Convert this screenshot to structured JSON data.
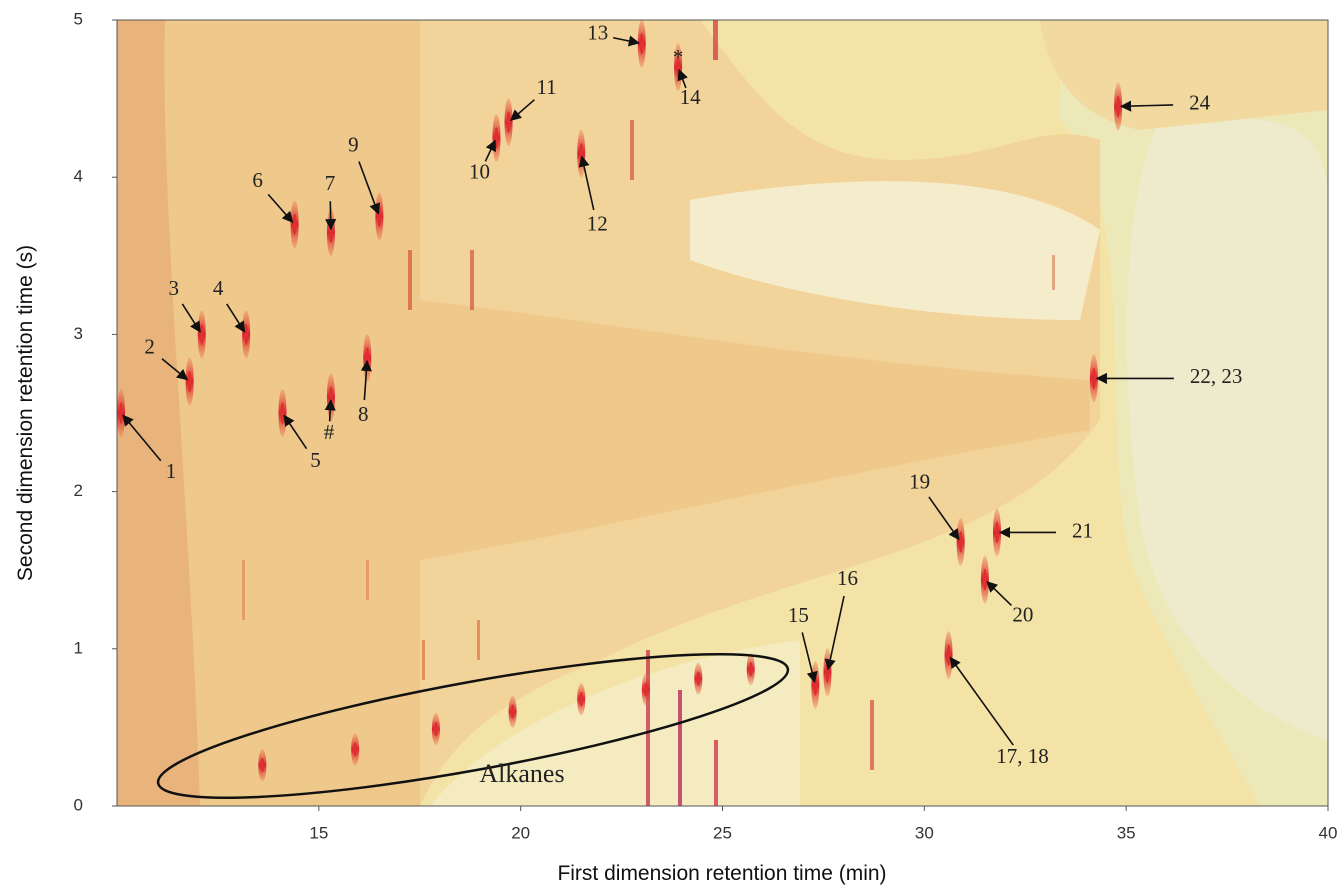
{
  "chart_data": {
    "type": "contour",
    "x_label": "First dimension retention time (min)",
    "y_label": "Second dimension retention time (s)",
    "xlim": [
      10,
      40
    ],
    "xticks": [
      15,
      20,
      25,
      30,
      35,
      40
    ],
    "ylim": [
      0,
      5
    ],
    "yticks": [
      0,
      1,
      2,
      3,
      4,
      5
    ],
    "peak_color": "#e0302a",
    "peaks": [
      {
        "label": "1",
        "x": 10.1,
        "y": 2.5
      },
      {
        "label": "2",
        "x": 11.8,
        "y": 2.7
      },
      {
        "label": "3",
        "x": 12.1,
        "y": 3.0
      },
      {
        "label": "4",
        "x": 13.2,
        "y": 3.0
      },
      {
        "label": "5",
        "x": 14.1,
        "y": 2.5
      },
      {
        "label": "#",
        "x": 15.3,
        "y": 2.6
      },
      {
        "label": "6",
        "x": 14.4,
        "y": 3.7
      },
      {
        "label": "7",
        "x": 15.3,
        "y": 3.65
      },
      {
        "label": "8",
        "x": 16.2,
        "y": 2.85
      },
      {
        "label": "9",
        "x": 16.5,
        "y": 3.75
      },
      {
        "label": "10",
        "x": 19.4,
        "y": 4.25
      },
      {
        "label": "11",
        "x": 19.7,
        "y": 4.35
      },
      {
        "label": "12",
        "x": 21.5,
        "y": 4.15
      },
      {
        "label": "13",
        "x": 23.0,
        "y": 4.85
      },
      {
        "label": "14",
        "x": 23.9,
        "y": 4.7
      },
      {
        "label": "15",
        "x": 27.3,
        "y": 0.77
      },
      {
        "label": "16",
        "x": 27.6,
        "y": 0.85
      },
      {
        "label": "17, 18",
        "x": 30.6,
        "y": 0.96
      },
      {
        "label": "19",
        "x": 30.9,
        "y": 1.68
      },
      {
        "label": "20",
        "x": 31.5,
        "y": 1.44
      },
      {
        "label": "21",
        "x": 31.8,
        "y": 1.74
      },
      {
        "label": "22, 23",
        "x": 34.2,
        "y": 2.72
      },
      {
        "label": "24",
        "x": 34.8,
        "y": 4.45
      }
    ],
    "annotations": [
      {
        "text": "*",
        "x": 23.9,
        "y": 4.75
      }
    ],
    "alkanes": {
      "label": "Alkanes",
      "x": [
        13.6,
        15.9,
        17.9,
        19.8,
        21.5,
        23.1,
        24.4,
        25.7
      ],
      "y": [
        0.26,
        0.36,
        0.49,
        0.6,
        0.68,
        0.74,
        0.81,
        0.87
      ]
    }
  }
}
